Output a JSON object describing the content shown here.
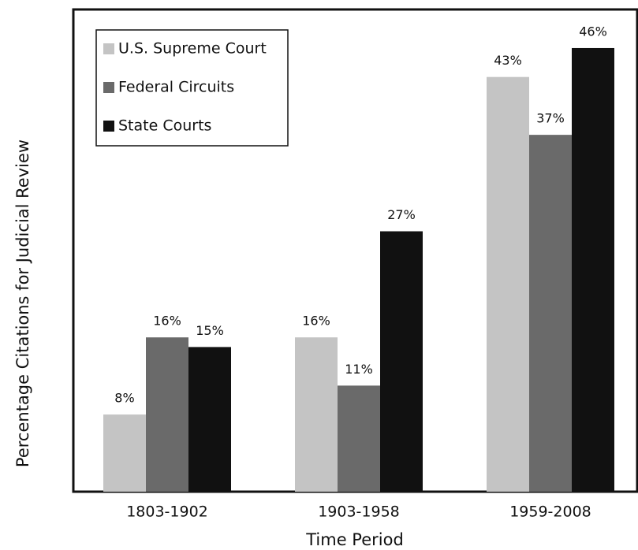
{
  "chart_data": {
    "type": "bar",
    "x_label": "Time Period",
    "y_label": "Percentage Citations for Judicial Review",
    "categories": [
      "1803-1902",
      "1903-1958",
      "1959-2008"
    ],
    "series": [
      {
        "name": "U.S. Supreme Court",
        "color": "#c4c4c4",
        "values": [
          8,
          16,
          43
        ],
        "value_labels": [
          "8%",
          "16%",
          "43%"
        ]
      },
      {
        "name": "Federal Circuits",
        "color": "#6a6a6a",
        "values": [
          16,
          11,
          37
        ],
        "value_labels": [
          "16%",
          "11%",
          "37%"
        ]
      },
      {
        "name": "State Courts",
        "color": "#111111",
        "values": [
          15,
          27,
          46
        ],
        "value_labels": [
          "15%",
          "27%",
          "46%"
        ]
      }
    ],
    "ylim": [
      0,
      50
    ],
    "legend": "upper left"
  }
}
